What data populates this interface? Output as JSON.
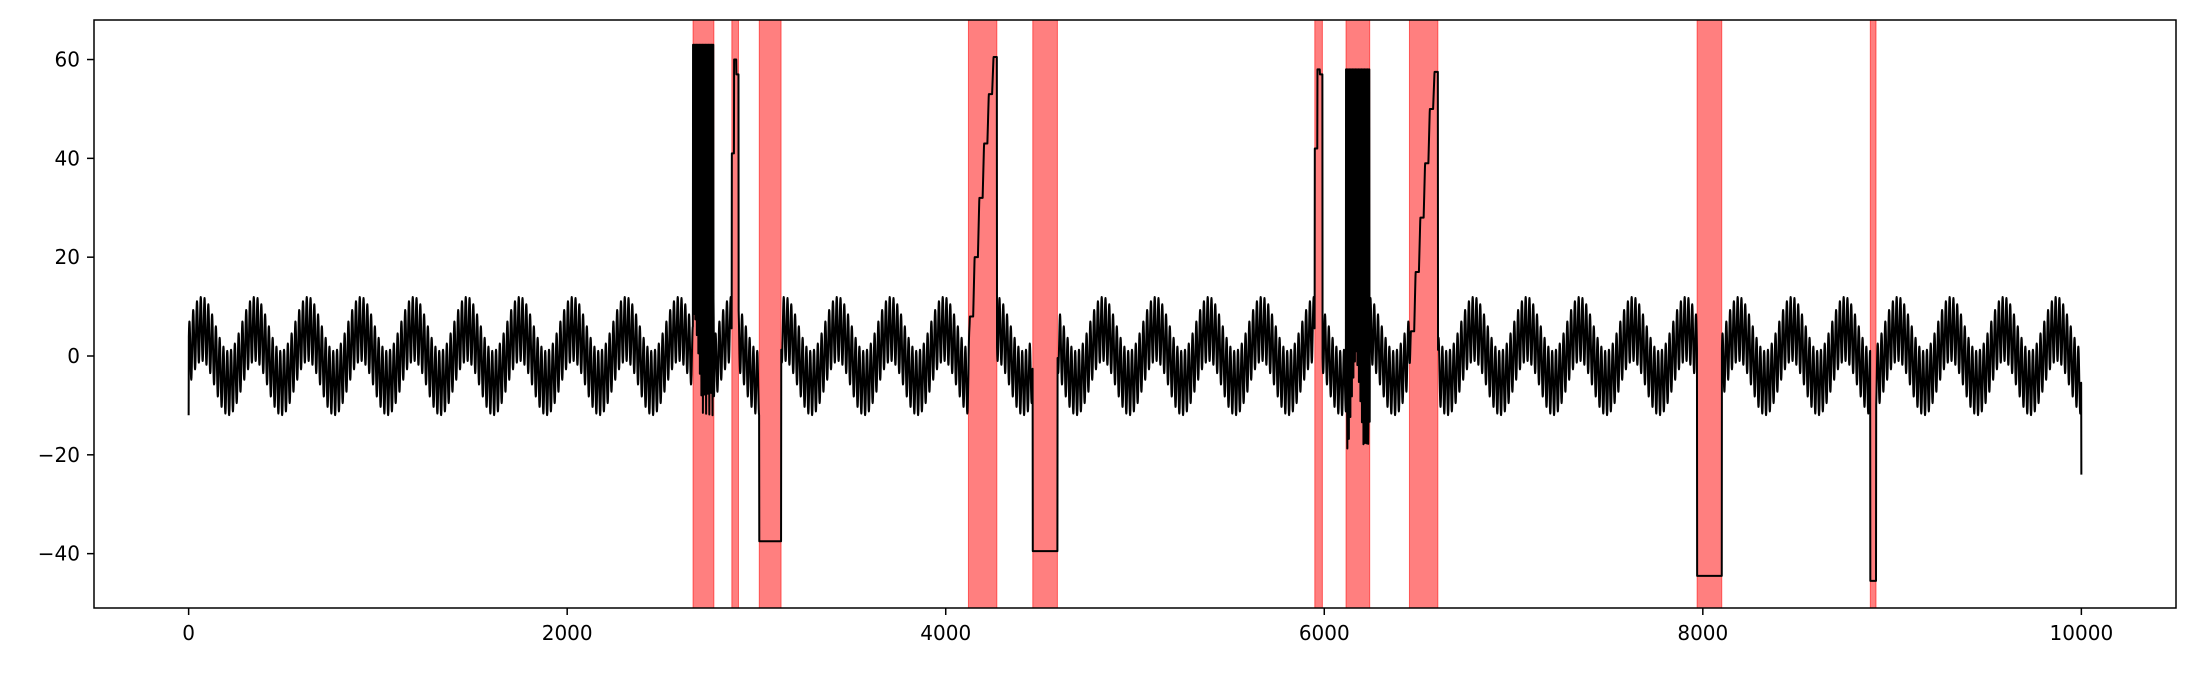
{
  "chart_data": {
    "type": "line",
    "title": "",
    "xlabel": "",
    "ylabel": "",
    "xlim": [
      -500,
      10500
    ],
    "ylim": [
      -51,
      68
    ],
    "x_ticks": [
      0,
      2000,
      4000,
      6000,
      8000,
      10000
    ],
    "y_ticks": [
      -40,
      -20,
      0,
      20,
      40,
      60
    ],
    "x_tick_labels": [
      "0",
      "2000",
      "4000",
      "6000",
      "8000",
      "10000"
    ],
    "y_tick_labels": [
      "−40",
      "−20",
      "0",
      "20",
      "40",
      "60"
    ],
    "grid": false,
    "legend": "none",
    "colors": {
      "line": "#000000",
      "anomaly_band": "#ff0000"
    },
    "series": [
      {
        "generator": {
          "x_range": [
            0,
            10000
          ],
          "sample_step": 1,
          "baseline": {
            "slow_amplitude": 5.5,
            "slow_period": 280,
            "fast_amplitude": 6.5,
            "fast_period": 20,
            "start_value": -12,
            "end_value": -24
          },
          "anomalies": [
            {
              "x_start": 2665,
              "x_end": 2775,
              "kind": "oscillating_plateau",
              "high": 63,
              "low": -12
            },
            {
              "x_start": 2870,
              "x_end": 2905,
              "kind": "spike",
              "values": [
                41,
                60,
                57
              ]
            },
            {
              "x_start": 3015,
              "x_end": 3130,
              "kind": "flat",
              "value": -37.5
            },
            {
              "x_start": 4120,
              "x_end": 4270,
              "kind": "staircase_up",
              "levels": [
                8,
                20,
                32,
                43,
                53,
                60.5
              ]
            },
            {
              "x_start": 4460,
              "x_end": 4590,
              "kind": "flat",
              "value": -39.5
            },
            {
              "x_start": 5950,
              "x_end": 5990,
              "kind": "spike",
              "values": [
                42,
                58,
                57
              ]
            },
            {
              "x_start": 6115,
              "x_end": 6240,
              "kind": "oscillating_plateau",
              "high": 58,
              "low": -20
            },
            {
              "x_start": 6450,
              "x_end": 6600,
              "kind": "staircase_up",
              "levels": [
                5,
                17,
                28,
                39,
                50,
                57.5
              ]
            },
            {
              "x_start": 7970,
              "x_end": 8100,
              "kind": "flat",
              "value": -44.5
            },
            {
              "x_start": 8885,
              "x_end": 8915,
              "kind": "flat",
              "value": -45.5
            }
          ]
        }
      }
    ],
    "highlight_regions": [
      {
        "x_start": 2665,
        "x_end": 2775
      },
      {
        "x_start": 2870,
        "x_end": 2905
      },
      {
        "x_start": 3015,
        "x_end": 3130
      },
      {
        "x_start": 4120,
        "x_end": 4270
      },
      {
        "x_start": 4460,
        "x_end": 4590
      },
      {
        "x_start": 5950,
        "x_end": 5990
      },
      {
        "x_start": 6115,
        "x_end": 6240
      },
      {
        "x_start": 6450,
        "x_end": 6600
      },
      {
        "x_start": 7970,
        "x_end": 8100
      },
      {
        "x_start": 8885,
        "x_end": 8915
      }
    ]
  }
}
